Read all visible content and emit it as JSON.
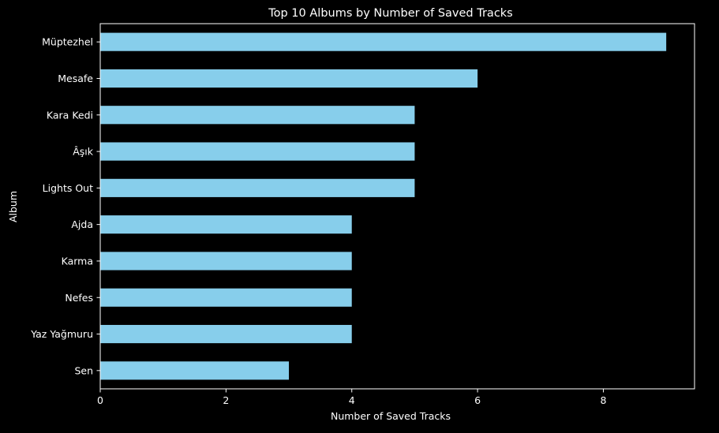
{
  "chart_data": {
    "type": "bar",
    "orientation": "horizontal",
    "title": "Top 10 Albums by Number of Saved Tracks",
    "xlabel": "Number of Saved Tracks",
    "ylabel": "Album",
    "categories": [
      "Müptezhel",
      "Mesafe",
      "Kara Kedi",
      "Âşık",
      "Lights Out",
      "Ajda",
      "Karma",
      "Nefes",
      "Yaz Yağmuru",
      "Sen"
    ],
    "values": [
      9,
      6,
      5,
      5,
      5,
      4,
      4,
      4,
      4,
      3
    ],
    "xlim": [
      0,
      9.45
    ],
    "xticks": [
      0,
      2,
      4,
      6,
      8
    ],
    "grid": false,
    "legend": "none",
    "colors": {
      "bar": "#87CEEB",
      "background": "#000000",
      "text": "#FFFFFF",
      "axis": "#FFFFFF"
    }
  }
}
